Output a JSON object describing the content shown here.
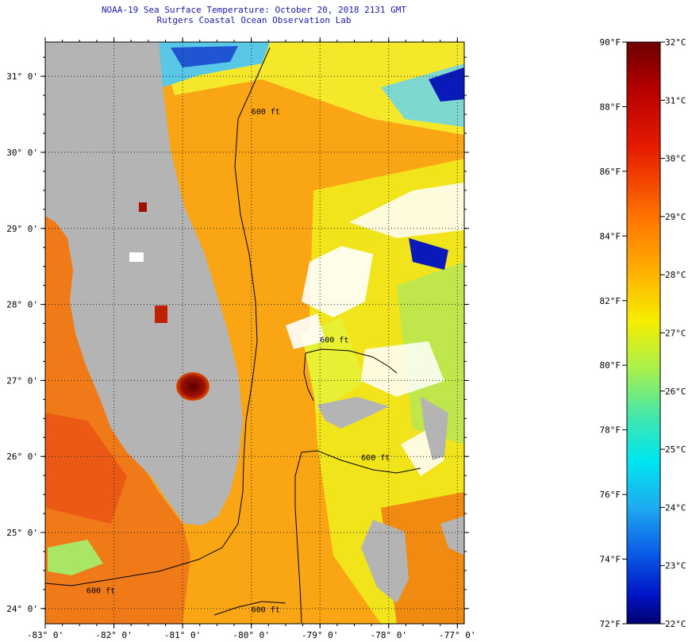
{
  "title": {
    "line1": "NOAA-19 Sea Surface Temperature:  October 20, 2018 2131 GMT",
    "line2": "Rutgers Coastal Ocean Observation Lab"
  },
  "map": {
    "lon_range": [
      -83,
      -76.9
    ],
    "lat_range": [
      23.8,
      31.45
    ],
    "lon_ticks": [
      {
        "value": -83,
        "label": "-83° 0'"
      },
      {
        "value": -82,
        "label": "-82° 0'"
      },
      {
        "value": -81,
        "label": "-81° 0'"
      },
      {
        "value": -80,
        "label": "-80° 0'"
      },
      {
        "value": -79,
        "label": "-79° 0'"
      },
      {
        "value": -78,
        "label": "-78° 0'"
      },
      {
        "value": -77,
        "label": "-77° 0'"
      }
    ],
    "lat_ticks": [
      {
        "value": 31,
        "label": "31° 0'"
      },
      {
        "value": 30,
        "label": "30° 0'"
      },
      {
        "value": 29,
        "label": "29° 0'"
      },
      {
        "value": 28,
        "label": "28° 0'"
      },
      {
        "value": 27,
        "label": "27° 0'"
      },
      {
        "value": 26,
        "label": "26° 0'"
      },
      {
        "value": 25,
        "label": "25° 0'"
      },
      {
        "value": 24,
        "label": "24° 0'"
      }
    ],
    "contour_labels": [
      {
        "text": "600 ft",
        "lon": -80.0,
        "lat": 30.5
      },
      {
        "text": "600 ft",
        "lon": -79.0,
        "lat": 27.5
      },
      {
        "text": "600 ft",
        "lon": -78.4,
        "lat": 25.95
      },
      {
        "text": "600 ft",
        "lon": -82.4,
        "lat": 24.2
      },
      {
        "text": "600 ft",
        "lon": -80.0,
        "lat": 23.95
      }
    ],
    "colors": {
      "land": "#b4b4b4",
      "cloud": "#ffffff",
      "gridline": "#222222"
    }
  },
  "colorbar": {
    "f_ticks": [
      {
        "value": 90,
        "label": "90°F"
      },
      {
        "value": 88,
        "label": "88°F"
      },
      {
        "value": 86,
        "label": "86°F"
      },
      {
        "value": 84,
        "label": "84°F"
      },
      {
        "value": 82,
        "label": "82°F"
      },
      {
        "value": 80,
        "label": "80°F"
      },
      {
        "value": 78,
        "label": "78°F"
      },
      {
        "value": 76,
        "label": "76°F"
      },
      {
        "value": 74,
        "label": "74°F"
      },
      {
        "value": 72,
        "label": "72°F"
      }
    ],
    "c_ticks": [
      {
        "value": 32,
        "label": "32°C"
      },
      {
        "value": 31,
        "label": "31°C"
      },
      {
        "value": 30,
        "label": "30°C"
      },
      {
        "value": 29,
        "label": "29°C"
      },
      {
        "value": 28,
        "label": "28°C"
      },
      {
        "value": 27,
        "label": "27°C"
      },
      {
        "value": 26,
        "label": "26°C"
      },
      {
        "value": 25,
        "label": "25°C"
      },
      {
        "value": 24,
        "label": "24°C"
      },
      {
        "value": 23,
        "label": "23°C"
      },
      {
        "value": 22,
        "label": "22°C"
      }
    ],
    "range_f": [
      72,
      90
    ],
    "range_c": [
      22,
      32
    ]
  }
}
